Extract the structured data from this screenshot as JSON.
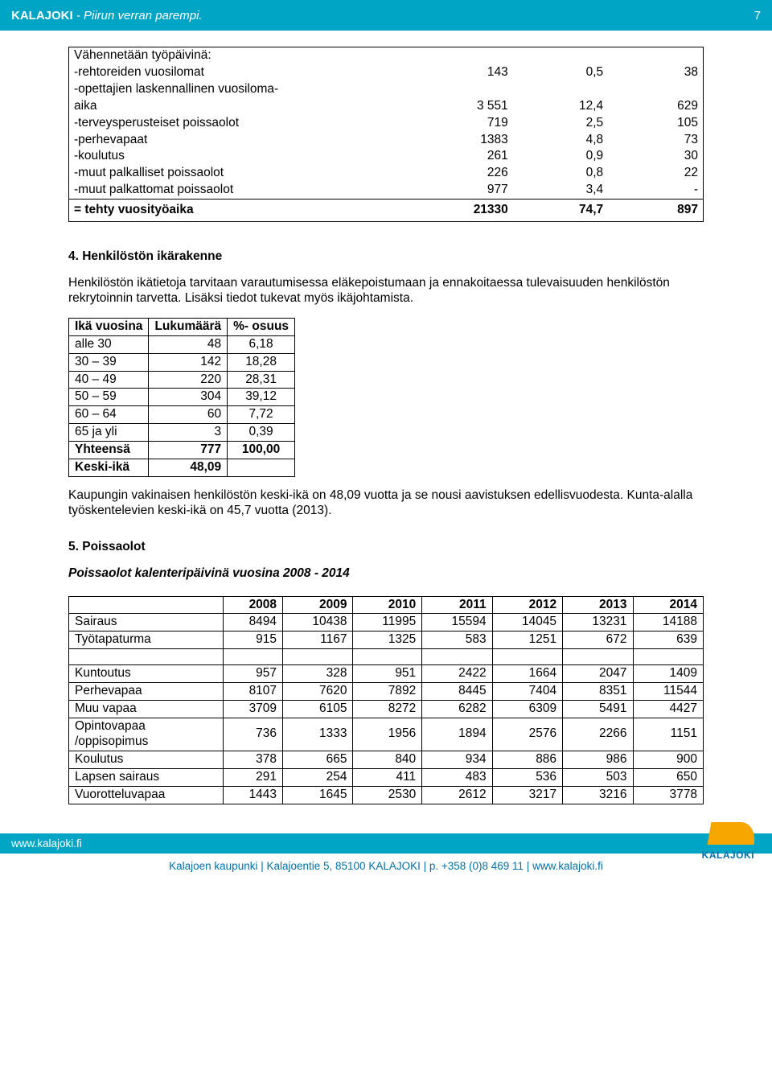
{
  "header": {
    "brand": "KALAJOKI",
    "tagline": " - Piirun verran parempi.",
    "page_num": "7"
  },
  "table1": {
    "rows": [
      {
        "label": "Vähennetään työpäivinä:",
        "a": "",
        "b": "",
        "c": ""
      },
      {
        "label": "-rehtoreiden vuosilomat",
        "a": "143",
        "b": "0,5",
        "c": "38"
      },
      {
        "label": "-opettajien laskennallinen vuosiloma-",
        "a": "",
        "b": "",
        "c": ""
      },
      {
        "label": "aika",
        "a": "3 551",
        "b": "12,4",
        "c": "629"
      },
      {
        "label": "-terveysperusteiset poissaolot",
        "a": "719",
        "b": "2,5",
        "c": "105"
      },
      {
        "label": "-perhevapaat",
        "a": "1383",
        "b": "4,8",
        "c": "73"
      },
      {
        "label": "-koulutus",
        "a": "261",
        "b": "0,9",
        "c": "30"
      },
      {
        "label": "-muut palkalliset poissaolot",
        "a": "226",
        "b": "0,8",
        "c": "22"
      },
      {
        "label": "-muut palkattomat poissaolot",
        "a": "977",
        "b": "3,4",
        "c": "-"
      }
    ],
    "total": {
      "label": "= tehty vuosityöaika",
      "a": "21330",
      "b": "74,7",
      "c": "897"
    }
  },
  "section4": {
    "heading": "4. Henkilöstön ikärakenne",
    "para": "Henkilöstön ikätietoja tarvitaan varautumisessa eläkepoistumaan ja ennakoitaessa tulevaisuuden henkilöstön rekrytoinnin tarvetta. Lisäksi tiedot tukevat myös ikäjohtamista."
  },
  "table2": {
    "headers": [
      "Ikä vuosina",
      "Lukumäärä",
      "%- osuus"
    ],
    "rows": [
      {
        "a": "alle 30",
        "b": "48",
        "c": "6,18"
      },
      {
        "a": "30 – 39",
        "b": "142",
        "c": "18,28"
      },
      {
        "a": "40 – 49",
        "b": "220",
        "c": "28,31"
      },
      {
        "a": "50 – 59",
        "b": "304",
        "c": "39,12"
      },
      {
        "a": "60 – 64",
        "b": "60",
        "c": "7,72"
      },
      {
        "a": "65 ja yli",
        "b": "3",
        "c": "0,39"
      }
    ],
    "bold_rows": [
      {
        "a": "Yhteensä",
        "b": "777",
        "c": "100,00"
      },
      {
        "a": "Keski-ikä",
        "b": "48,09",
        "c": ""
      }
    ]
  },
  "para_after_t2": "Kaupungin vakinaisen henkilöstön keski-ikä on 48,09 vuotta ja se nousi aavistuksen edellisvuodesta. Kunta-alalla työskentelevien keski-ikä on 45,7 vuotta (2013).",
  "section5": {
    "heading": "5. Poissaolot",
    "subhead": "Poissaolot kalenteripäivinä vuosina 2008 - 2014"
  },
  "table3": {
    "years": [
      "2008",
      "2009",
      "2010",
      "2011",
      "2012",
      "2013",
      "2014"
    ],
    "rows": [
      {
        "label": "Sairaus",
        "v": [
          "8494",
          "10438",
          "11995",
          "15594",
          "14045",
          "13231",
          "14188"
        ]
      },
      {
        "label": "Työtapaturma",
        "v": [
          "915",
          "1167",
          "1325",
          "583",
          "1251",
          "672",
          "639"
        ]
      }
    ],
    "rows2": [
      {
        "label": "Kuntoutus",
        "v": [
          "957",
          "328",
          "951",
          "2422",
          "1664",
          "2047",
          "1409"
        ]
      },
      {
        "label": "Perhevapaa",
        "v": [
          "8107",
          "7620",
          "7892",
          "8445",
          "7404",
          "8351",
          "11544"
        ]
      },
      {
        "label": "Muu vapaa",
        "v": [
          "3709",
          "6105",
          "8272",
          "6282",
          "6309",
          "5491",
          "4427"
        ]
      },
      {
        "label_1": "Opintovapaa",
        "label_2": "/oppisopimus",
        "v": [
          "736",
          "1333",
          "1956",
          "1894",
          "2576",
          "2266",
          "1151"
        ]
      },
      {
        "label": "Koulutus",
        "v": [
          "378",
          "665",
          "840",
          "934",
          "886",
          "986",
          "900"
        ]
      },
      {
        "label": "Lapsen sairaus",
        "v": [
          "291",
          "254",
          "411",
          "483",
          "536",
          "503",
          "650"
        ]
      },
      {
        "label": "Vuorotteluvapaa",
        "v": [
          "1443",
          "1645",
          "2530",
          "2612",
          "3217",
          "3216",
          "3778"
        ]
      }
    ]
  },
  "footer": {
    "url": "www.kalajoki.fi",
    "logo_text": "KALAJOKI",
    "line": "Kalajoen kaupunki | Kalajoentie 5, 85100 KALAJOKI | p. +358 (0)8 469 11 | www.kalajoki.fi"
  }
}
